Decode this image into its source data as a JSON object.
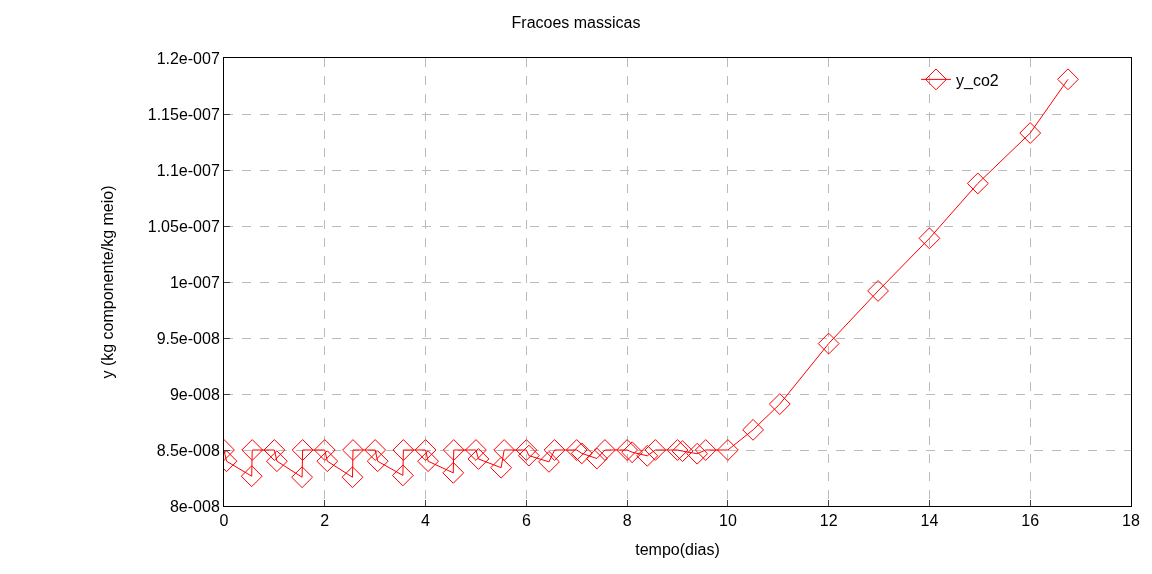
{
  "chart_data": {
    "type": "line",
    "title": "Fracoes massicas",
    "xlabel": "tempo(dias)",
    "ylabel": "y (kg componente/kg meio)",
    "x": [
      0,
      0.05,
      0.55,
      0.56,
      1.0,
      1.05,
      1.55,
      1.56,
      2.0,
      2.05,
      2.55,
      2.56,
      3.0,
      3.05,
      3.55,
      3.56,
      4.0,
      4.05,
      4.55,
      4.56,
      5.0,
      5.05,
      5.5,
      5.56,
      6.0,
      6.05,
      6.45,
      6.56,
      7.0,
      7.1,
      7.4,
      7.56,
      8.0,
      8.1,
      8.4,
      8.56,
      9.0,
      9.1,
      9.39,
      9.56,
      10.0,
      10.5,
      11.03,
      12.0,
      12.98,
      14.0,
      14.96,
      16.0,
      16.75
    ],
    "series": [
      {
        "name": "y_co2",
        "color": "#ff0000",
        "values": [
          8.5e-08,
          8.4e-08,
          8.266e-08,
          8.5e-08,
          8.5e-08,
          8.4e-08,
          8.257e-08,
          8.5e-08,
          8.5e-08,
          8.4e-08,
          8.257e-08,
          8.5e-08,
          8.5e-08,
          8.4e-08,
          8.273e-08,
          8.5e-08,
          8.5e-08,
          8.4e-08,
          8.296e-08,
          8.5e-08,
          8.5e-08,
          8.42e-08,
          8.342e-08,
          8.5e-08,
          8.5e-08,
          8.45e-08,
          8.394e-08,
          8.5e-08,
          8.5e-08,
          8.47e-08,
          8.424e-08,
          8.5e-08,
          8.5e-08,
          8.48e-08,
          8.448e-08,
          8.5e-08,
          8.5e-08,
          8.49e-08,
          8.467e-08,
          8.5e-08,
          8.5e-08,
          8.68e-08,
          8.91e-08,
          9.45e-08,
          9.92e-08,
          1.039e-07,
          1.088e-07,
          1.133e-07,
          1.181e-07
        ]
      }
    ],
    "xlim": [
      0,
      18
    ],
    "xticks": [
      0,
      2,
      4,
      6,
      8,
      10,
      12,
      14,
      16,
      18
    ],
    "ylim": [
      8e-08,
      1.2e-07
    ],
    "yticks": [
      {
        "value": 8e-08,
        "label": "8e-008"
      },
      {
        "value": 8.5e-08,
        "label": "8.5e-008"
      },
      {
        "value": 9e-08,
        "label": "9e-008"
      },
      {
        "value": 9.5e-08,
        "label": "9.5e-008"
      },
      {
        "value": 1e-07,
        "label": "1e-007"
      },
      {
        "value": 1.05e-07,
        "label": "1.05e-007"
      },
      {
        "value": 1.1e-07,
        "label": "1.1e-007"
      },
      {
        "value": 1.15e-07,
        "label": "1.15e-007"
      },
      {
        "value": 1.2e-07,
        "label": "1.2e-007"
      }
    ],
    "grid": true,
    "legend": "top right",
    "marker": "diamond",
    "line_style": "solid"
  }
}
